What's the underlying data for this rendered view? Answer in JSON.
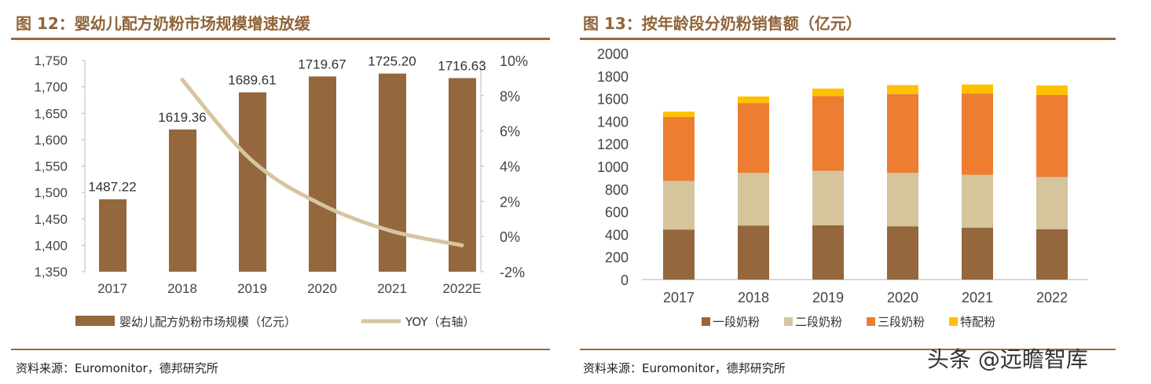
{
  "left": {
    "title": "图 12：婴幼儿配方奶粉市场规模增速放缓",
    "source": "资料来源：Euromonitor，德邦研究所"
  },
  "right": {
    "title": "图 13：按年龄段分奶粉销售额（亿元）",
    "source": "资料来源：Euromonitor，德邦研究所"
  },
  "watermark": "头条 @远瞻智库",
  "chart_data": [
    {
      "type": "bar",
      "categories": [
        "2017",
        "2018",
        "2019",
        "2020",
        "2021",
        "2022E"
      ],
      "series": [
        {
          "name": "婴幼儿配方奶粉市场规模（亿元）",
          "values": [
            1487.22,
            1619.36,
            1689.61,
            1719.67,
            1725.2,
            1716.63
          ],
          "color": "#94673d",
          "labels": [
            "1487.22",
            "1619.36",
            "1689.61",
            "1719.67",
            "1725.20",
            "1716.63"
          ]
        },
        {
          "name": "YOY（右轴）",
          "type": "line",
          "axis": "right",
          "values": [
            null,
            8.9,
            4.3,
            1.8,
            0.3,
            -0.5
          ],
          "color": "#d6c5a0"
        }
      ],
      "ylim": [
        1350,
        1750
      ],
      "yticks": [
        "1,350",
        "1,400",
        "1,450",
        "1,500",
        "1,550",
        "1,600",
        "1,650",
        "1,700",
        "1,750"
      ],
      "y2lim": [
        -2,
        10
      ],
      "y2ticks": [
        "-2%",
        "0%",
        "2%",
        "4%",
        "6%",
        "8%",
        "10%"
      ],
      "legend": "bottom",
      "grid": false
    },
    {
      "type": "bar",
      "stacked": true,
      "categories": [
        "2017",
        "2018",
        "2019",
        "2020",
        "2021",
        "2022"
      ],
      "series": [
        {
          "name": "一段奶粉",
          "values": [
            441,
            478,
            480,
            471,
            459,
            445
          ],
          "color": "#94673d"
        },
        {
          "name": "二段奶粉",
          "values": [
            431,
            466,
            481,
            473,
            467,
            462
          ],
          "color": "#d5c49c"
        },
        {
          "name": "三段奶粉",
          "values": [
            566,
            615,
            661,
            696,
            719,
            726
          ],
          "color": "#ed7d31"
        },
        {
          "name": "特配粉",
          "values": [
            47,
            60,
            67,
            80,
            80,
            83
          ],
          "color": "#ffc000"
        }
      ],
      "ylim": [
        0,
        2000
      ],
      "yticks": [
        "0",
        "200",
        "400",
        "600",
        "800",
        "1000",
        "1200",
        "1400",
        "1600",
        "1800",
        "2000"
      ],
      "legend": "bottom",
      "grid": false
    }
  ]
}
